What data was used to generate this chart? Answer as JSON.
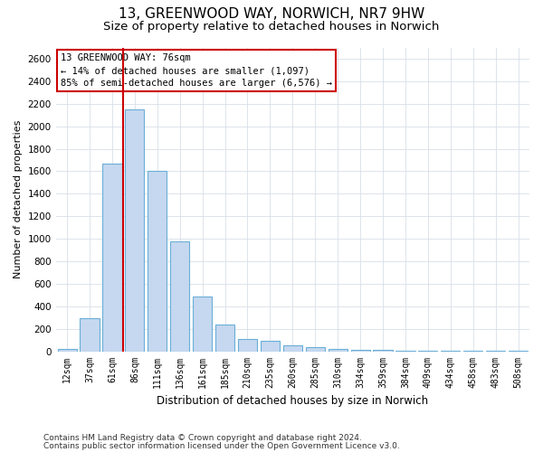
{
  "title": "13, GREENWOOD WAY, NORWICH, NR7 9HW",
  "subtitle": "Size of property relative to detached houses in Norwich",
  "xlabel": "Distribution of detached houses by size in Norwich",
  "ylabel": "Number of detached properties",
  "footer1": "Contains HM Land Registry data © Crown copyright and database right 2024.",
  "footer2": "Contains public sector information licensed under the Open Government Licence v3.0.",
  "categories": [
    "12sqm",
    "37sqm",
    "61sqm",
    "86sqm",
    "111sqm",
    "136sqm",
    "161sqm",
    "185sqm",
    "210sqm",
    "235sqm",
    "260sqm",
    "285sqm",
    "310sqm",
    "334sqm",
    "359sqm",
    "384sqm",
    "409sqm",
    "434sqm",
    "458sqm",
    "483sqm",
    "508sqm"
  ],
  "values": [
    20,
    290,
    1670,
    2150,
    1600,
    980,
    490,
    240,
    110,
    90,
    50,
    35,
    20,
    10,
    10,
    5,
    5,
    5,
    3,
    3,
    2
  ],
  "bar_color": "#c5d8f0",
  "bar_edge_color": "#6aaed6",
  "red_line_x": 2.5,
  "annotation_text": "13 GREENWOOD WAY: 76sqm\n← 14% of detached houses are smaller (1,097)\n85% of semi-detached houses are larger (6,576) →",
  "annotation_box_color": "#ffffff",
  "annotation_box_edge": "#cc0000",
  "ylim": [
    0,
    2700
  ],
  "yticks": [
    0,
    200,
    400,
    600,
    800,
    1000,
    1200,
    1400,
    1600,
    1800,
    2000,
    2200,
    2400,
    2600
  ],
  "bg_color": "#ffffff",
  "grid_color": "#d8dfe8",
  "title_fontsize": 11,
  "subtitle_fontsize": 9.5,
  "footer_fontsize": 6.5
}
